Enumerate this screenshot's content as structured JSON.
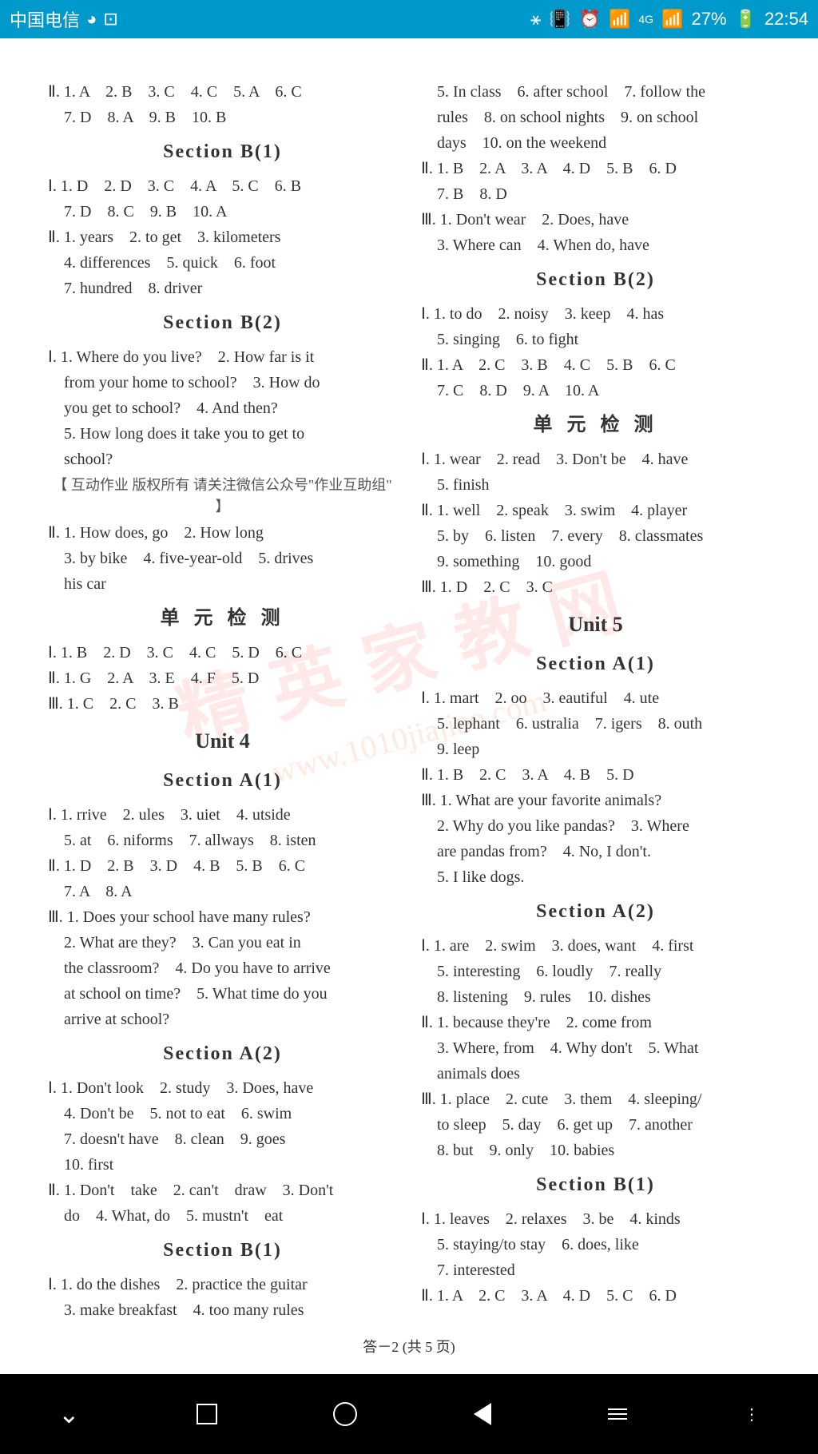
{
  "statusBar": {
    "carrier": "中国电信",
    "signal4g": "4G",
    "signal2g": "2G",
    "battery": "27%",
    "time": "22:54"
  },
  "watermark_main": "精英家教网",
  "watermark_url": "www.1010jiajiao.com",
  "mid_watermark": "【 互动作业 版权所有 请关注微信公众号\"作业互助组\" 】",
  "left": {
    "top1": "Ⅱ. 1. A　2. B　3. C　4. C　5. A　6. C",
    "top2": "　7. D　8. A　9. B　10. B",
    "h1": "Section B(1)",
    "b1_1": "Ⅰ. 1. D　2. D　3. C　4. A　5. C　6. B",
    "b1_2": "　7. D　8. C　9. B　10. A",
    "b1_3": "Ⅱ. 1. years　2. to get　3. kilometers",
    "b1_4": "　4. differences　5. quick　6. foot",
    "b1_5": "　7. hundred　8. driver",
    "h2": "Section B(2)",
    "b2_1": "Ⅰ. 1. Where do you live?　2. How far is it",
    "b2_2": "　from your home to school?　3. How do",
    "b2_3": "　you get to school?　4. And then?",
    "b2_4": "　5. How long does it take you to get to",
    "b2_5": "　school?",
    "b2_6": "Ⅱ. 1. How does, go　2. How long",
    "b2_7": "　3. by bike　4. five-year-old　5. drives",
    "b2_8": "　his car",
    "h3": "单 元 检 测",
    "t1_1": "Ⅰ. 1. B　2. D　3. C　4. C　5. D　6. C",
    "t1_2": "Ⅱ. 1. G　2. A　3. E　4. F　5. D",
    "t1_3": "Ⅲ. 1. C　2. C　3. B",
    "h4": "Unit 4",
    "h5": "Section A(1)",
    "a1_1": "Ⅰ. 1. rrive　2. ules　3. uiet　4. utside",
    "a1_2": "　5. at　6. niforms　7. allways　8. isten",
    "a1_3": "Ⅱ. 1. D　2. B　3. D　4. B　5. B　6. C",
    "a1_4": "　7. A　8. A",
    "a1_5": "Ⅲ. 1. Does your school have many rules?",
    "a1_6": "　2. What are they?　3. Can you eat in",
    "a1_7": "　the classroom?　4. Do you have to arrive",
    "a1_8": "　at school on time?　5. What time do you",
    "a1_9": "　arrive at school?",
    "h6": "Section A(2)",
    "a2_1": "Ⅰ. 1. Don't look　2. study　3. Does, have",
    "a2_2": "　4. Don't be　5. not to eat　6. swim",
    "a2_3": "　7. doesn't have　8. clean　9. goes",
    "a2_4": "　10. first",
    "a2_5": "Ⅱ. 1. Don't　take　2. can't　draw　3. Don't",
    "a2_6": "　do　4. What, do　5. mustn't　eat",
    "h7": "Section B(1)",
    "sb1_1": "Ⅰ. 1. do the dishes　2. practice the guitar",
    "sb1_2": "　3. make breakfast　4. too many rules"
  },
  "right": {
    "top1": "　5. In class　6. after school　7. follow the",
    "top2": "　rules　8. on school nights　9. on school",
    "top3": "　days　10. on the weekend",
    "top4": "Ⅱ. 1. B　2. A　3. A　4. D　5. B　6. D",
    "top5": "　7. B　8. D",
    "top6": "Ⅲ. 1. Don't wear　2. Does, have",
    "top7": "　3. Where can　4. When do, have",
    "h1": "Section B(2)",
    "b2_1": "Ⅰ. 1. to do　2. noisy　3. keep　4. has",
    "b2_2": "　5. singing　6. to fight",
    "b2_3": "Ⅱ. 1. A　2. C　3. B　4. C　5. B　6. C",
    "b2_4": "　7. C　8. D　9. A　10. A",
    "h2": "单 元 检 测",
    "t1_1": "Ⅰ. 1. wear　2. read　3. Don't be　4. have",
    "t1_2": "　5. finish",
    "t1_3": "Ⅱ. 1. well　2. speak　3. swim　4. player",
    "t1_4": "　5. by　6. listen　7. every　8. classmates",
    "t1_5": "　9. something　10. good",
    "t1_6": "Ⅲ. 1. D　2. C　3. C",
    "h3": "Unit 5",
    "h4": "Section A(1)",
    "a1_1": "Ⅰ. 1. mart　2. oo　3. eautiful　4. ute",
    "a1_2": "　5. lephant　6. ustralia　7. igers　8. outh",
    "a1_3": "　9. leep",
    "a1_4": "Ⅱ. 1. B　2. C　3. A　4. B　5. D",
    "a1_5": "Ⅲ. 1. What are your favorite animals?",
    "a1_6": "　2. Why do you like pandas?　3. Where",
    "a1_7": "　are pandas from?　4. No, I don't.",
    "a1_8": "　5. I like dogs.",
    "h5": "Section A(2)",
    "a2_1": "Ⅰ. 1. are　2. swim　3. does, want　4. first",
    "a2_2": "　5. interesting　6. loudly　7. really",
    "a2_3": "　8. listening　9. rules　10. dishes",
    "a2_4": "Ⅱ. 1. because they're　2. come from",
    "a2_5": "　3. Where, from　4. Why don't　5. What",
    "a2_6": "　animals does",
    "a2_7": "Ⅲ. 1. place　2. cute　3. them　4. sleeping/",
    "a2_8": "　to sleep　5. day　6. get up　7. another",
    "a2_9": "　8. but　9. only　10. babies",
    "h6": "Section B(1)",
    "sb1_1": "Ⅰ. 1. leaves　2. relaxes　3. be　4. kinds",
    "sb1_2": "　5. staying/to stay　6. does, like",
    "sb1_3": "　7. interested",
    "sb1_4": "Ⅱ. 1. A　2. C　3. A　4. D　5. C　6. D"
  },
  "footer": "答－2 (共 5 页)"
}
